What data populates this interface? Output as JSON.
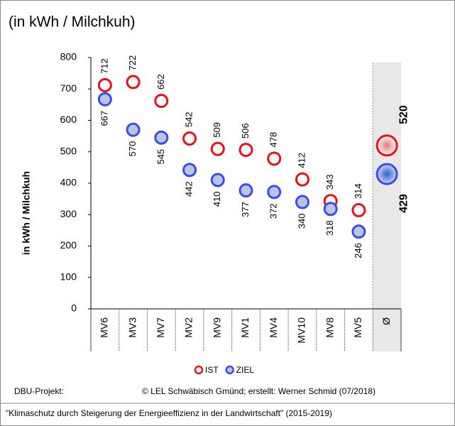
{
  "chart_data": {
    "type": "dot",
    "title": "(in kWh / Milchkuh)",
    "ylabel": "in kWh / Milchkuh",
    "categories": [
      "MV6",
      "MV3",
      "MV7",
      "MV2",
      "MV9",
      "MV1",
      "MV4",
      "MV10",
      "MV8",
      "MV5",
      "Ø"
    ],
    "series": [
      {
        "name": "IST",
        "color": "#e8101a",
        "values": [
          712,
          722,
          662,
          542,
          509,
          506,
          478,
          412,
          343,
          314,
          520
        ]
      },
      {
        "name": "ZIEL",
        "color": "#3a4fe0",
        "values": [
          667,
          570,
          545,
          442,
          410,
          377,
          372,
          340,
          318,
          246,
          429
        ]
      }
    ],
    "ylim": [
      0,
      800
    ],
    "yticks": [
      0,
      100,
      200,
      300,
      400,
      500,
      600,
      700,
      800
    ],
    "legend": "bottom"
  },
  "footer": {
    "project": "DBU-Projekt:",
    "credit": "© LEL Schwäbisch Gmünd; erstellt: Werner Schmid (07/2018)",
    "subtitle": "\"Klimaschutz durch Steigerung der Energieeffizienz in der Landwirtschaft\" (2015-2019)"
  }
}
